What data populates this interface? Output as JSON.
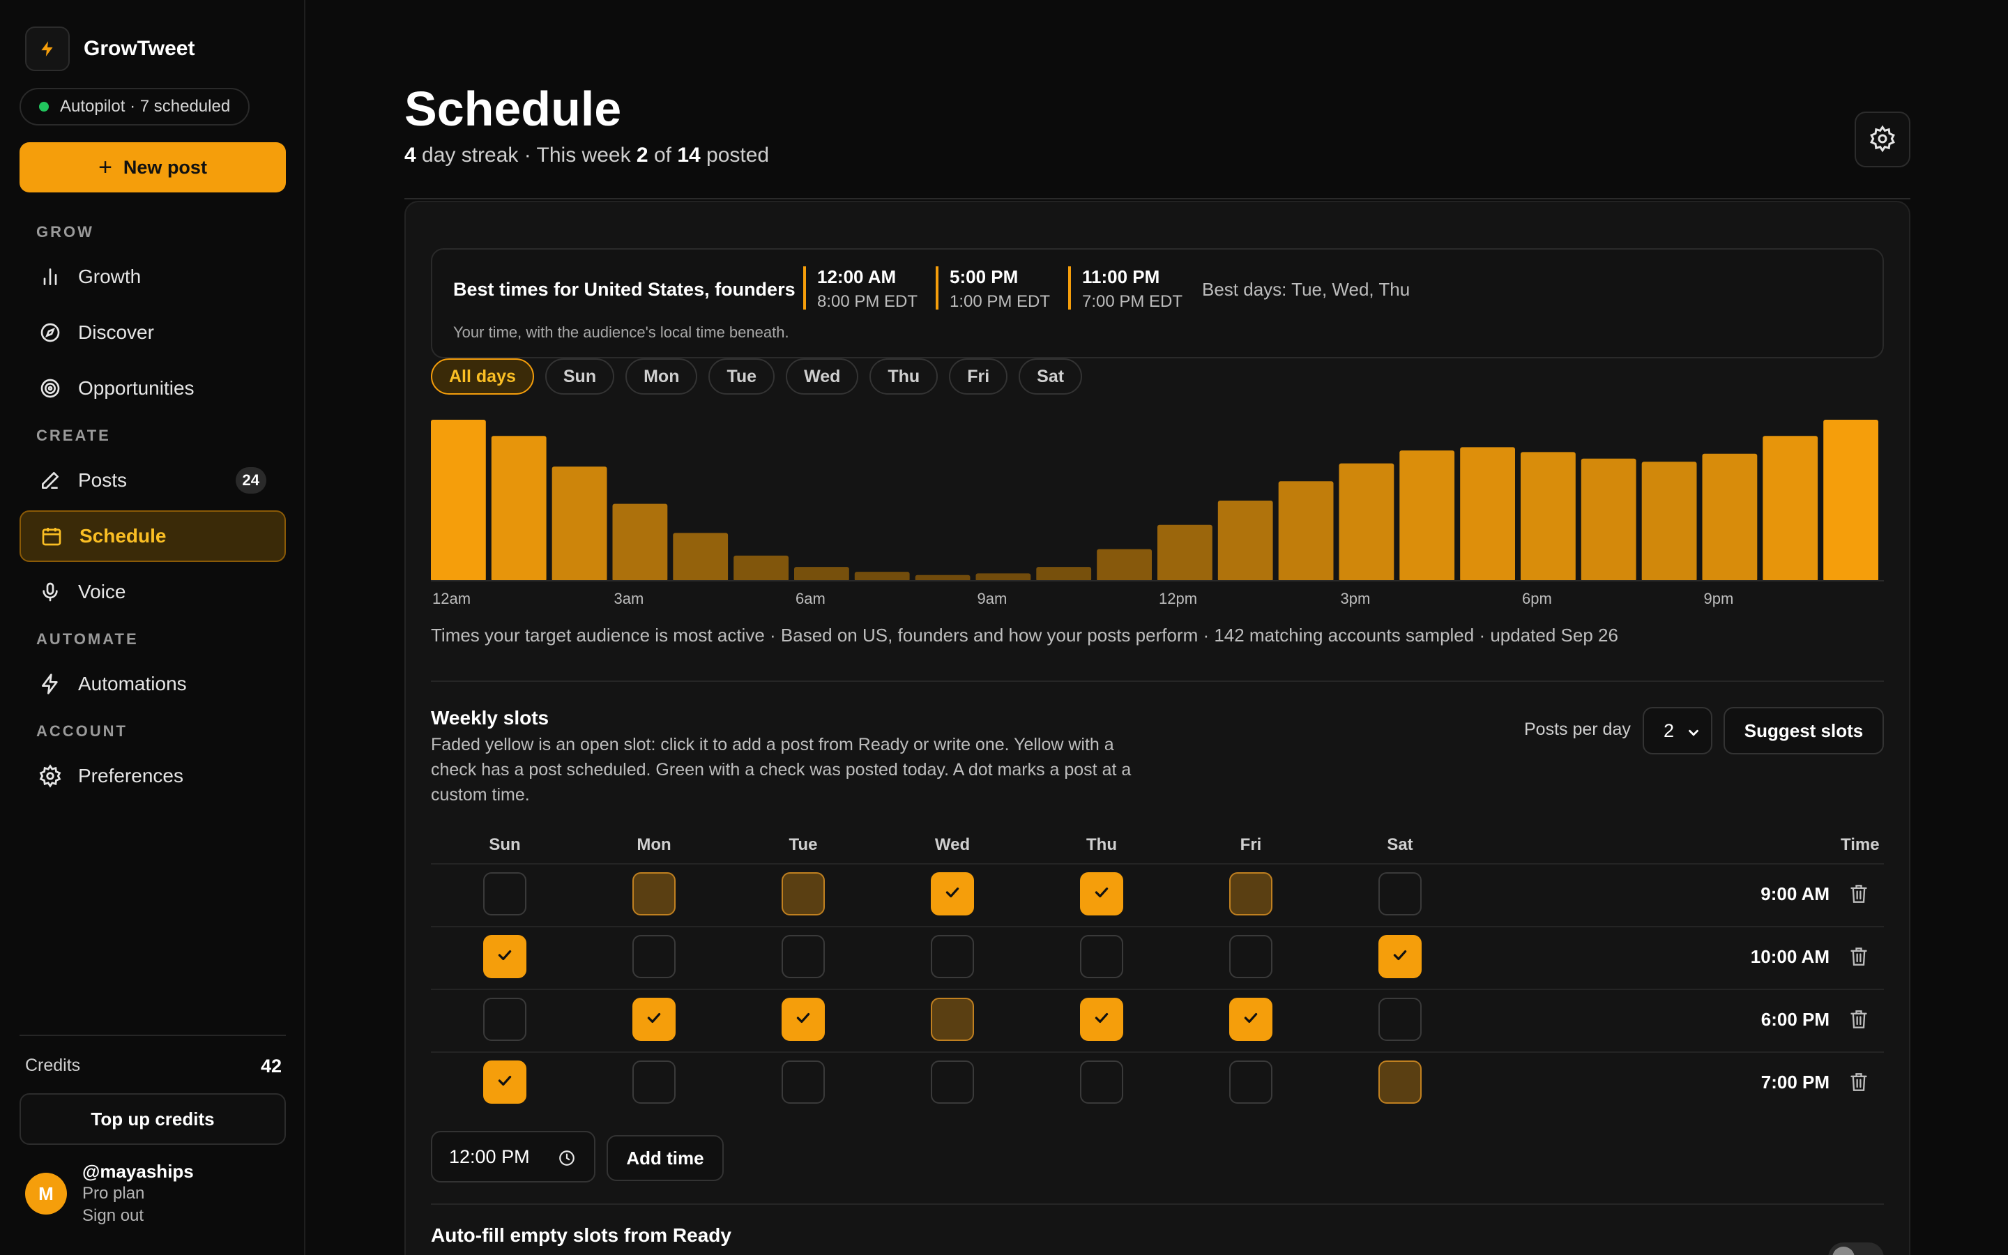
{
  "brand": {
    "name": "GrowTweet"
  },
  "status": {
    "label": "Autopilot · 7 scheduled",
    "color": "#22c55e"
  },
  "new_post": {
    "label": "New post"
  },
  "nav": {
    "sections": [
      {
        "label": "GROW"
      },
      {
        "label": "CREATE"
      },
      {
        "label": "AUTOMATE"
      },
      {
        "label": "ACCOUNT"
      }
    ],
    "items": [
      {
        "label": "Growth",
        "icon": "bar-chart-icon"
      },
      {
        "label": "Discover",
        "icon": "compass-icon"
      },
      {
        "label": "Opportunities",
        "icon": "target-icon"
      },
      {
        "label": "Posts",
        "icon": "pen-icon",
        "badge": "24"
      },
      {
        "label": "Schedule",
        "icon": "calendar-icon",
        "active": true
      },
      {
        "label": "Voice",
        "icon": "microphone-icon"
      },
      {
        "label": "Automations",
        "icon": "lightning-icon"
      },
      {
        "label": "Preferences",
        "icon": "gear-icon"
      }
    ]
  },
  "credits": {
    "label": "Credits",
    "value": "42",
    "topup_label": "Top up credits"
  },
  "user": {
    "initial": "M",
    "handle": "@mayaships",
    "plan": "Pro plan",
    "signout": "Sign out"
  },
  "page": {
    "title": "Schedule",
    "streak_days": "4",
    "streak_text": " day streak · This week ",
    "week_posted": "2",
    "of_text": " of ",
    "week_total": "14",
    "posted_text": " posted"
  },
  "best_times": {
    "title": "Best times for United States, founders",
    "times": [
      {
        "local": "12:00 AM",
        "audience": "8:00 PM EDT"
      },
      {
        "local": "5:00 PM",
        "audience": "1:00 PM EDT"
      },
      {
        "local": "11:00 PM",
        "audience": "7:00 PM EDT"
      }
    ],
    "best_days": "Best days: Tue, Wed, Thu",
    "note": "Your time, with the audience's local time beneath."
  },
  "day_filters": [
    {
      "label": "All days",
      "active": true
    },
    {
      "label": "Sun"
    },
    {
      "label": "Mon"
    },
    {
      "label": "Tue"
    },
    {
      "label": "Wed"
    },
    {
      "label": "Thu"
    },
    {
      "label": "Fri"
    },
    {
      "label": "Sat"
    }
  ],
  "chart_data": {
    "type": "bar",
    "title": "",
    "xlabel": "",
    "ylabel": "",
    "categories": [
      "12am",
      "1am",
      "2am",
      "3am",
      "4am",
      "5am",
      "6am",
      "7am",
      "8am",
      "9am",
      "10am",
      "11am",
      "12pm",
      "1pm",
      "2pm",
      "3pm",
      "4pm",
      "5pm",
      "6pm",
      "7pm",
      "8pm",
      "9pm",
      "10pm",
      "11pm"
    ],
    "values": [
      100,
      90,
      71,
      48,
      30,
      16,
      9,
      6,
      4,
      5,
      9,
      20,
      35,
      50,
      62,
      73,
      81,
      83,
      80,
      76,
      74,
      79,
      90,
      100
    ],
    "ylim": [
      0,
      100
    ],
    "tick_labels": [
      "12am",
      "3am",
      "6am",
      "9am",
      "12pm",
      "3pm",
      "6pm",
      "9pm"
    ],
    "grid": false,
    "bar_color": "#f59e0b"
  },
  "chart_note": "Times your target audience is most active · Based on US, founders and how your posts perform · 142 matching accounts sampled · updated Sep 26",
  "weekly": {
    "title": "Weekly slots",
    "description": "Faded yellow is an open slot: click it to add a post from Ready or write one. Yellow with a check has a post scheduled. Green with a check was posted today. A dot marks a post at a custom time.",
    "posts_per_day_label": "Posts per day",
    "posts_per_day_value": "2",
    "suggest_label": "Suggest slots",
    "days": [
      "Sun",
      "Mon",
      "Tue",
      "Wed",
      "Thu",
      "Fri",
      "Sat"
    ],
    "time_header": "Time",
    "rows": [
      {
        "time": "9:00 AM",
        "slots": [
          "empty",
          "open",
          "open",
          "scheduled",
          "scheduled",
          "open",
          "empty"
        ]
      },
      {
        "time": "10:00 AM",
        "slots": [
          "scheduled",
          "empty",
          "empty",
          "empty",
          "empty",
          "empty",
          "scheduled"
        ]
      },
      {
        "time": "6:00 PM",
        "slots": [
          "empty",
          "scheduled",
          "scheduled",
          "open",
          "scheduled",
          "scheduled",
          "empty"
        ]
      },
      {
        "time": "7:00 PM",
        "slots": [
          "scheduled",
          "empty",
          "empty",
          "empty",
          "empty",
          "empty",
          "open"
        ]
      }
    ],
    "new_time_value": "12:00 PM",
    "add_time_label": "Add time"
  },
  "autofill": {
    "title": "Auto-fill empty slots from Ready"
  }
}
